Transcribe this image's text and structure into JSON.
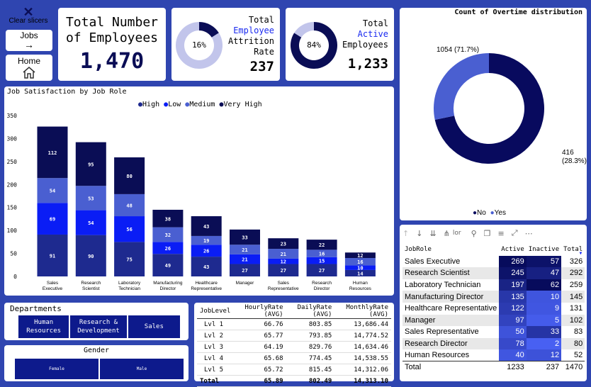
{
  "nav": {
    "clear_label": "Clear slicers",
    "jobs_label": "Jobs",
    "home_label": "Home"
  },
  "kpi_total": {
    "line1": "Total Number",
    "line2": "of Employees",
    "value": "1,470"
  },
  "kpi_attrition": {
    "pct": "16%",
    "pct_value": 16,
    "t1": "Total",
    "t2": "Employee",
    "t3": "Attrition",
    "t4": "Rate",
    "value": "237"
  },
  "kpi_active": {
    "pct": "84%",
    "pct_value": 84,
    "t1": "Total",
    "t2": "Active",
    "t3": "Employees",
    "value": "1,233"
  },
  "overtime": {
    "title": "Count of Overtime distribution",
    "no_label": "1054 (71.7%)",
    "yes_label_1": "416",
    "yes_label_2": "(28.3%)",
    "legend_no": "No",
    "legend_yes": "Yes",
    "colors": {
      "no": "#080a5e",
      "yes": "#4a5fd1"
    },
    "chart_data": {
      "type": "pie",
      "categories": [
        "No",
        "Yes"
      ],
      "values": [
        1054,
        416
      ]
    }
  },
  "jobsat": {
    "title": "Job Satisfaction by Job Role",
    "legend": [
      "High",
      "Low",
      "Medium",
      "Very High"
    ],
    "colors": {
      "High": "#1e2a8f",
      "Low": "#0a1df5",
      "Medium": "#4a5fd1",
      "Very High": "#0a0d55"
    },
    "yticks": [
      "0",
      "50",
      "100",
      "150",
      "200",
      "250",
      "300",
      "350"
    ]
  },
  "chart_data": {
    "type": "bar",
    "stacked": true,
    "title": "Job Satisfaction by Job Role",
    "categories": [
      "Sales Executive",
      "Research Scientist",
      "Laboratory Technician",
      "Manufacturing Director",
      "Healthcare Representative",
      "Manager",
      "Sales Representative",
      "Research Director",
      "Human Resources"
    ],
    "ylim": [
      0,
      350
    ],
    "series": [
      {
        "name": "High",
        "values": [
          91,
          90,
          75,
          49,
          43,
          27,
          27,
          27,
          14
        ]
      },
      {
        "name": "Low",
        "values": [
          69,
          54,
          56,
          26,
          26,
          21,
          12,
          15,
          10
        ]
      },
      {
        "name": "Medium",
        "values": [
          54,
          53,
          48,
          32,
          19,
          21,
          21,
          16,
          16
        ]
      },
      {
        "name": "Very High",
        "values": [
          112,
          95,
          80,
          38,
          43,
          33,
          23,
          22,
          12
        ]
      }
    ]
  },
  "departments": {
    "title": "Departments",
    "items": [
      "Human Resources",
      "Research & Development",
      "Sales"
    ]
  },
  "gender": {
    "title": "Gender",
    "items": [
      "Female",
      "Male"
    ]
  },
  "perf": {
    "headers": [
      "JobLevel",
      "HourlyRate (AVG)",
      "DailyRate (AVG)",
      "MonthlyRate (AVG)"
    ],
    "rows": [
      [
        "Lvl 1",
        "66.76",
        "803.85",
        "13,686.44"
      ],
      [
        "Lvl 2",
        "65.77",
        "793.85",
        "14,774.52"
      ],
      [
        "Lvl 3",
        "64.19",
        "829.76",
        "14,634.46"
      ],
      [
        "Lvl 4",
        "65.68",
        "774.45",
        "14,538.55"
      ],
      [
        "Lvl 5",
        "65.72",
        "815.45",
        "14,312.06"
      ]
    ],
    "total": [
      "Total",
      "65.89",
      "802.49",
      "14,313.10"
    ]
  },
  "roles": {
    "toolbar_text": "lor",
    "headers": [
      "JobRole",
      "Active",
      "Inactive",
      "Total"
    ],
    "rows": [
      [
        "Sales Executive",
        "269",
        "57",
        "326"
      ],
      [
        "Research Scientist",
        "245",
        "47",
        "292"
      ],
      [
        "Laboratory Technician",
        "197",
        "62",
        "259"
      ],
      [
        "Manufacturing Director",
        "135",
        "10",
        "145"
      ],
      [
        "Healthcare Representative",
        "122",
        "9",
        "131"
      ],
      [
        "Manager",
        "97",
        "5",
        "102"
      ],
      [
        "Sales Representative",
        "50",
        "33",
        "83"
      ],
      [
        "Research Director",
        "78",
        "2",
        "80"
      ],
      [
        "Human Resources",
        "40",
        "12",
        "52"
      ]
    ],
    "total": [
      "Total",
      "1233",
      "237",
      "1470"
    ]
  }
}
